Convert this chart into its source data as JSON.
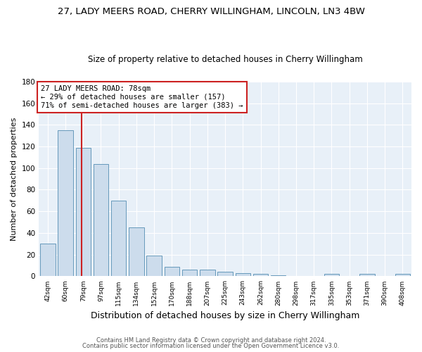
{
  "title1": "27, LADY MEERS ROAD, CHERRY WILLINGHAM, LINCOLN, LN3 4BW",
  "title2": "Size of property relative to detached houses in Cherry Willingham",
  "xlabel": "Distribution of detached houses by size in Cherry Willingham",
  "ylabel": "Number of detached properties",
  "bar_labels": [
    "42sqm",
    "60sqm",
    "79sqm",
    "97sqm",
    "115sqm",
    "134sqm",
    "152sqm",
    "170sqm",
    "188sqm",
    "207sqm",
    "225sqm",
    "243sqm",
    "262sqm",
    "280sqm",
    "298sqm",
    "317sqm",
    "335sqm",
    "353sqm",
    "371sqm",
    "390sqm",
    "408sqm"
  ],
  "bar_values": [
    30,
    135,
    119,
    104,
    70,
    45,
    19,
    9,
    6,
    6,
    4,
    3,
    2,
    1,
    0,
    0,
    2,
    0,
    2,
    0,
    2
  ],
  "bar_color": "#ccdcec",
  "bar_edge_color": "#6699bb",
  "red_line_bar_index": 2,
  "annotation_box_text": "27 LADY MEERS ROAD: 78sqm\n← 29% of detached houses are smaller (157)\n71% of semi-detached houses are larger (383) →",
  "red_line_color": "#cc2222",
  "annotation_box_color": "#ffffff",
  "annotation_box_edge_color": "#cc2222",
  "ylim": [
    0,
    180
  ],
  "yticks": [
    0,
    20,
    40,
    60,
    80,
    100,
    120,
    140,
    160,
    180
  ],
  "footnote1": "Contains HM Land Registry data © Crown copyright and database right 2024.",
  "footnote2": "Contains public sector information licensed under the Open Government Licence v3.0.",
  "fig_bg_color": "#ffffff",
  "plot_bg_color": "#e8f0f8",
  "grid_color": "#ffffff",
  "title1_fontsize": 9.5,
  "title2_fontsize": 8.5,
  "ann_fontsize": 7.5,
  "ylabel_fontsize": 8,
  "xlabel_fontsize": 9
}
